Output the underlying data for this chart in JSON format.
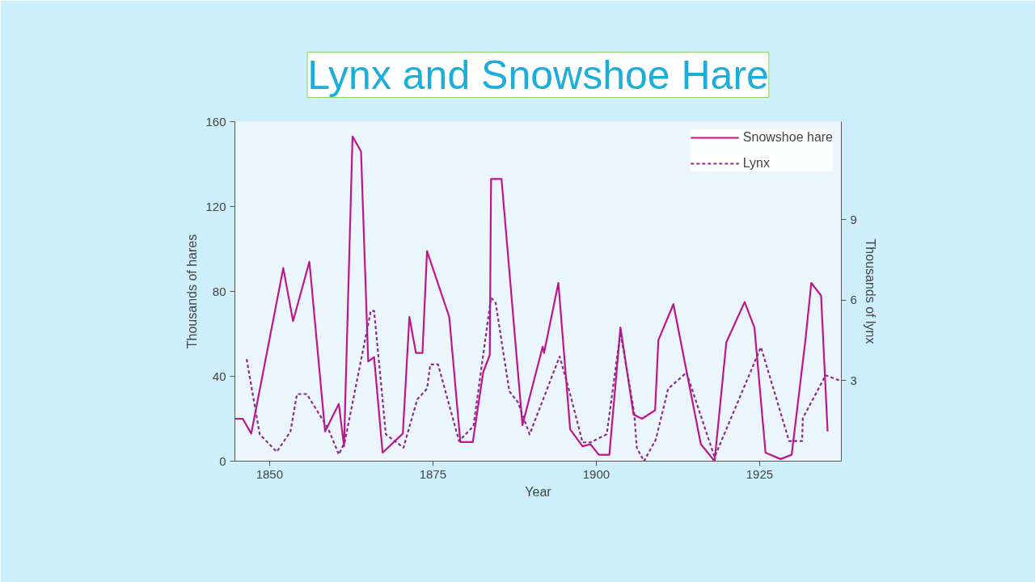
{
  "chart_data": {
    "type": "line",
    "title": "Lynx and Snowshoe Hare",
    "xlabel": "Year",
    "ylabel": "Thousands of hares",
    "y2label": "Thousands of lynx",
    "xlim": [
      1844.7,
      1937.5
    ],
    "xticks": [
      1850,
      1875,
      1900,
      1925
    ],
    "ylim": [
      0,
      160
    ],
    "yticks": [
      0,
      40,
      80,
      120,
      160
    ],
    "y2lim": [
      0,
      12.65
    ],
    "y2ticks": [
      3,
      6,
      9
    ],
    "grid": false,
    "legend": "top right",
    "series": [
      {
        "name": "Snowshoe hare",
        "color": "#c0148c",
        "line_style": "solid",
        "x": [
          1844.7,
          1845.9,
          1847.2,
          1852.1,
          1853.6,
          1856.1,
          1858.5,
          1860.6,
          1861.4,
          1862.7,
          1864.0,
          1865.1,
          1866.0,
          1867.3,
          1870.4,
          1871.4,
          1872.4,
          1873.4,
          1874.1,
          1877.5,
          1879.2,
          1881.1,
          1882.7,
          1883.7,
          1883.9,
          1885.5,
          1888.7,
          1891.8,
          1892.0,
          1894.2,
          1896.0,
          1897.9,
          1899.1,
          1900.4,
          1902.0,
          1903.7,
          1905.7,
          1907.0,
          1909.0,
          1909.5,
          1911.8,
          1916.0,
          1918.1,
          1919.9,
          1922.7,
          1924.2,
          1925.9,
          1928.2,
          1929.9,
          1932.0,
          1932.9,
          1934.4,
          1935.4
        ],
        "values": [
          20,
          20,
          13,
          91,
          66,
          94,
          14,
          27,
          7,
          153,
          146,
          47,
          49,
          4,
          13,
          68,
          51,
          51,
          99,
          68,
          9,
          9,
          42,
          50,
          133,
          133,
          17,
          54,
          51,
          84,
          15,
          7,
          8,
          3,
          3,
          63,
          22,
          20,
          24,
          57,
          74,
          8,
          0,
          56,
          75,
          63,
          4,
          1,
          3,
          57,
          84,
          78,
          14
        ]
      },
      {
        "name": "Lynx",
        "color": "#8b2a8a",
        "line_style": "dashed",
        "axis": "y2",
        "x": [
          1846.5,
          1848.5,
          1851.1,
          1853.2,
          1854.2,
          1855.7,
          1859.0,
          1860.6,
          1861.5,
          1865.5,
          1866.0,
          1867.8,
          1870.5,
          1872.6,
          1874.1,
          1874.6,
          1875.8,
          1879.0,
          1881.2,
          1883.9,
          1884.6,
          1886.7,
          1888.0,
          1889.8,
          1894.4,
          1896.0,
          1897.9,
          1899.1,
          1901.6,
          1903.7,
          1905.8,
          1906.2,
          1907.3,
          1909.1,
          1911.0,
          1913.8,
          1918.1,
          1925.2,
          1929.5,
          1931.5,
          1931.6,
          1935.1,
          1937.3
        ],
        "values": [
          3.8,
          1.0,
          0.35,
          1.1,
          2.5,
          2.5,
          1.2,
          0.25,
          0.7,
          5.6,
          5.6,
          1.0,
          0.5,
          2.3,
          2.7,
          3.6,
          3.6,
          0.75,
          1.3,
          6.1,
          5.9,
          2.6,
          2.2,
          1.0,
          3.9,
          2.5,
          0.7,
          0.7,
          1.0,
          4.8,
          1.8,
          0.5,
          0.0,
          0.8,
          2.7,
          3.3,
          0.15,
          4.25,
          0.75,
          0.75,
          1.6,
          3.2,
          3.0
        ]
      }
    ]
  }
}
